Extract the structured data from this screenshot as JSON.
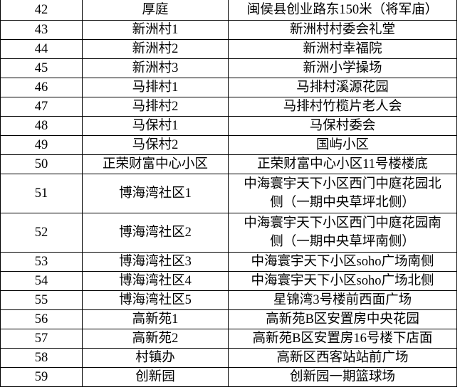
{
  "table": {
    "rows": [
      [
        42,
        "厚庭",
        "闽侯县创业路东150米（将军庙）"
      ],
      [
        43,
        "新洲村1",
        "新洲村村委会礼堂"
      ],
      [
        44,
        "新洲村2",
        "新洲村幸福院"
      ],
      [
        45,
        "新洲村3",
        "新洲小学操场"
      ],
      [
        46,
        "马排村1",
        "马排村溪源花园"
      ],
      [
        47,
        "马排村2",
        "马排村竹榄片老人会"
      ],
      [
        48,
        "马保村1",
        "马保村委会"
      ],
      [
        49,
        "马保村2",
        "国屿小区"
      ],
      [
        50,
        "正荣财富中心小区",
        "正荣财富中心小区11号楼楼底"
      ],
      [
        51,
        "博海湾社区1",
        "中海寰宇天下小区西门中庭花园北侧（一期中央草坪北侧）"
      ],
      [
        52,
        "博海湾社区2",
        "中海寰宇天下小区西门中庭花园南侧（一期中央草坪南侧）"
      ],
      [
        53,
        "博海湾社区3",
        "中海寰宇天下小区soho广场南侧"
      ],
      [
        54,
        "博海湾社区4",
        "中海寰宇天下小区soho广场北侧"
      ],
      [
        55,
        "博海湾社区5",
        "星锦湾3号楼前西面广场"
      ],
      [
        56,
        "高新苑1",
        "高新苑B区安置房中央花园"
      ],
      [
        57,
        "高新苑2",
        "高新苑B区安置房16号楼下店面"
      ],
      [
        58,
        "村镇办",
        "高新区西客站站前广场"
      ],
      [
        59,
        "创新园",
        "创新园一期篮球场"
      ]
    ]
  }
}
